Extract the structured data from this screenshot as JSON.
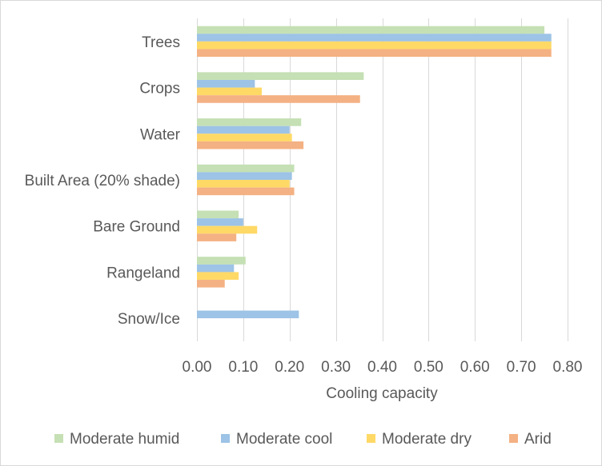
{
  "chart_data": {
    "type": "bar",
    "orientation": "horizontal",
    "title": "",
    "xlabel": "Cooling capacity",
    "ylabel": "",
    "xlim": [
      0,
      0.8
    ],
    "x_ticks": [
      0,
      0.1,
      0.2,
      0.3,
      0.4,
      0.5,
      0.6,
      0.7,
      0.8
    ],
    "x_tick_labels": [
      "0.00",
      "0.10",
      "0.20",
      "0.30",
      "0.40",
      "0.50",
      "0.60",
      "0.70",
      "0.80"
    ],
    "grid": "vertical major gridlines",
    "legend_position": "bottom",
    "categories": [
      "Trees",
      "Crops",
      "Water",
      "Built Area (20% shade)",
      "Bare Ground",
      "Rangeland",
      "Snow/Ice"
    ],
    "series": [
      {
        "name": "Moderate humid",
        "color": "#c5e0b4",
        "values": [
          0.75,
          0.36,
          0.225,
          0.21,
          0.09,
          0.105,
          0
        ]
      },
      {
        "name": "Moderate cool",
        "color": "#9dc3e6",
        "values": [
          0.765,
          0.125,
          0.2,
          0.205,
          0.1,
          0.08,
          0.22
        ]
      },
      {
        "name": "Moderate dry",
        "color": "#ffd966",
        "values": [
          0.765,
          0.14,
          0.205,
          0.2,
          0.13,
          0.09,
          0
        ]
      },
      {
        "name": "Arid",
        "color": "#f4b183",
        "values": [
          0.765,
          0.352,
          0.23,
          0.21,
          0.085,
          0.06,
          0
        ]
      }
    ],
    "gridline_color": "#d9d9d9"
  }
}
